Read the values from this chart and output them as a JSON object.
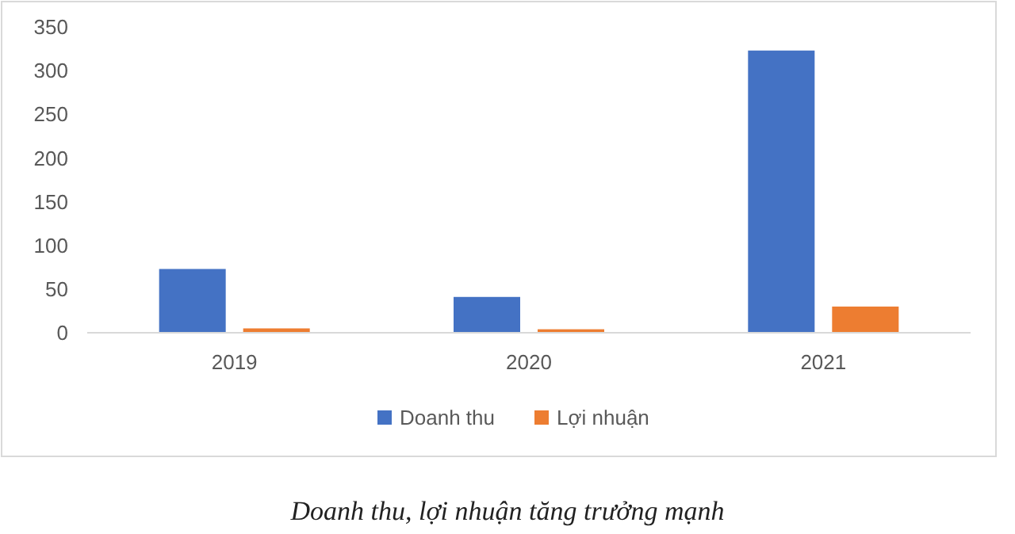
{
  "chart_data": {
    "type": "bar",
    "categories": [
      "2019",
      "2020",
      "2021"
    ],
    "series": [
      {
        "name": "Doanh thu",
        "color": "#4472c4",
        "values": [
          73,
          41,
          323
        ]
      },
      {
        "name": "Lợi nhuận",
        "color": "#ed7d31",
        "values": [
          5,
          4,
          30
        ]
      }
    ],
    "ylim": [
      0,
      350
    ],
    "yticks": [
      0,
      50,
      100,
      150,
      200,
      250,
      300,
      350
    ],
    "grid": false,
    "legend": "bottom",
    "annotations": [
      "Doanh thu, lợi nhuận tăng trưởng mạnh"
    ]
  }
}
